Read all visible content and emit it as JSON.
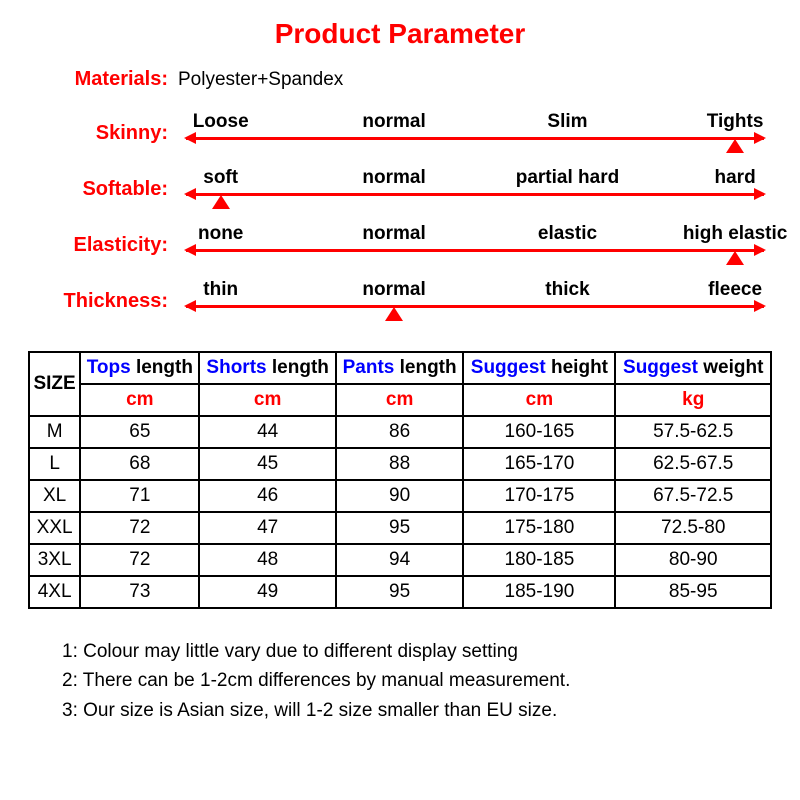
{
  "title": "Product Parameter",
  "materials": {
    "label": "Materials:",
    "value": "Polyester+Spandex"
  },
  "scales": {
    "track_colors": {
      "line": "#ff0000",
      "marker": "#ff0000"
    },
    "option_positions_pct": [
      6,
      36,
      66,
      95
    ],
    "rows": [
      {
        "label": "Skinny:",
        "options": [
          "Loose",
          "normal",
          "Slim",
          "Tights"
        ],
        "marker_pct": 95
      },
      {
        "label": "Softable:",
        "options": [
          "soft",
          "normal",
          "partial hard",
          "hard"
        ],
        "marker_pct": 6
      },
      {
        "label": "Elasticity:",
        "options": [
          "none",
          "normal",
          "elastic",
          "high elastic"
        ],
        "marker_pct": 95
      },
      {
        "label": "Thickness:",
        "options": [
          "thin",
          "normal",
          "thick",
          "fleece"
        ],
        "marker_pct": 36
      }
    ]
  },
  "size_table": {
    "size_label": "SIZE",
    "headers": [
      {
        "title": "Tops length",
        "unit": "cm"
      },
      {
        "title": "Shorts length",
        "unit": "cm"
      },
      {
        "title": "Pants length",
        "unit": "cm"
      },
      {
        "title": "Suggest height",
        "unit": "cm"
      },
      {
        "title": "Suggest weight",
        "unit": "kg"
      }
    ],
    "rows": [
      {
        "size": "M",
        "vals": [
          "65",
          "44",
          "86",
          "160-165",
          "57.5-62.5"
        ]
      },
      {
        "size": "L",
        "vals": [
          "68",
          "45",
          "88",
          "165-170",
          "62.5-67.5"
        ]
      },
      {
        "size": "XL",
        "vals": [
          "71",
          "46",
          "90",
          "170-175",
          "67.5-72.5"
        ]
      },
      {
        "size": "XXL",
        "vals": [
          "72",
          "47",
          "95",
          "175-180",
          "72.5-80"
        ]
      },
      {
        "size": "3XL",
        "vals": [
          "72",
          "48",
          "94",
          "180-185",
          "80-90"
        ]
      },
      {
        "size": "4XL",
        "vals": [
          "73",
          "49",
          "95",
          "185-190",
          "85-95"
        ]
      }
    ]
  },
  "notes": [
    "1: Colour may little vary due to different display setting",
    "2: There can be 1-2cm differences by manual measurement.",
    "3: Our size is Asian size, will 1-2 size smaller than EU size."
  ],
  "colors": {
    "title": "#ff0000",
    "label": "#ff0000",
    "header_blue": "#0000ff",
    "unit_red": "#ff0000"
  }
}
